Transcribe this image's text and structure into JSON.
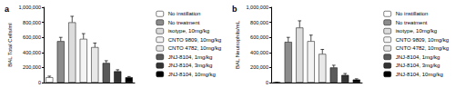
{
  "chart_data": [
    {
      "type": "bar",
      "title": "a",
      "y_label": "BAL Total Cells/ml",
      "categories": [
        "No instillation",
        "No treatment",
        "isotype, 10mg/kg",
        "CNTO 9809, 10mg/kg",
        "CNTO 4782, 10mg/kg",
        "JNJ-8104, 1mg/kg",
        "JNJ-8104, 3mg/kg",
        "JNJ-8104, 10mg/kg"
      ],
      "values": [
        70000,
        550000,
        800000,
        580000,
        470000,
        260000,
        150000,
        70000
      ],
      "errors": [
        15000,
        50000,
        80000,
        70000,
        55000,
        30000,
        20000,
        10000
      ],
      "colors": [
        "#ffffff",
        "#8c8c8c",
        "#dcdcdc",
        "#f4f4f4",
        "#e8e8e8",
        "#5a5a5a",
        "#333333",
        "#000000"
      ],
      "ylim": [
        0,
        1000000
      ],
      "yticks": [
        0,
        {
          "value": 200000,
          "label": "200,000"
        },
        {
          "value": 400000,
          "label": "400,000"
        },
        {
          "value": 600000,
          "label": "600,000"
        },
        {
          "value": 800000,
          "label": "800,000"
        },
        {
          "value": 1000000,
          "label": "1,000,000"
        }
      ],
      "tick_labels": "y",
      "legend": "right",
      "grid": false
    },
    {
      "type": "bar",
      "title": "b",
      "y_label": "BAL Neutrophils/mL",
      "categories": [
        "No instillation",
        "No treatment",
        "isotype, 10mg/kg",
        "CNTO 9809, 10mg/kg",
        "CNTO 4782, 10mg/kg",
        "JNJ-8104, 1mg/kg",
        "JNJ-8104, 3mg/kg",
        "JNJ-8104, 10mg/kg"
      ],
      "values": [
        2000,
        540000,
        730000,
        550000,
        380000,
        200000,
        100000,
        40000
      ],
      "errors": [
        1000,
        60000,
        90000,
        80000,
        60000,
        30000,
        20000,
        10000
      ],
      "colors": [
        "#ffffff",
        "#8c8c8c",
        "#dcdcdc",
        "#f4f4f4",
        "#e8e8e8",
        "#5a5a5a",
        "#333333",
        "#000000"
      ],
      "ylim": [
        0,
        1000000
      ],
      "yticks": [
        0,
        {
          "value": 200000,
          "label": "200,000"
        },
        {
          "value": 400000,
          "label": "400,000"
        },
        {
          "value": 600000,
          "label": "600,000"
        },
        {
          "value": 800000,
          "label": "800,000"
        },
        {
          "value": 1000000,
          "label": "1,000,000"
        }
      ],
      "tick_labels": "y",
      "legend": "right",
      "grid": false
    }
  ]
}
